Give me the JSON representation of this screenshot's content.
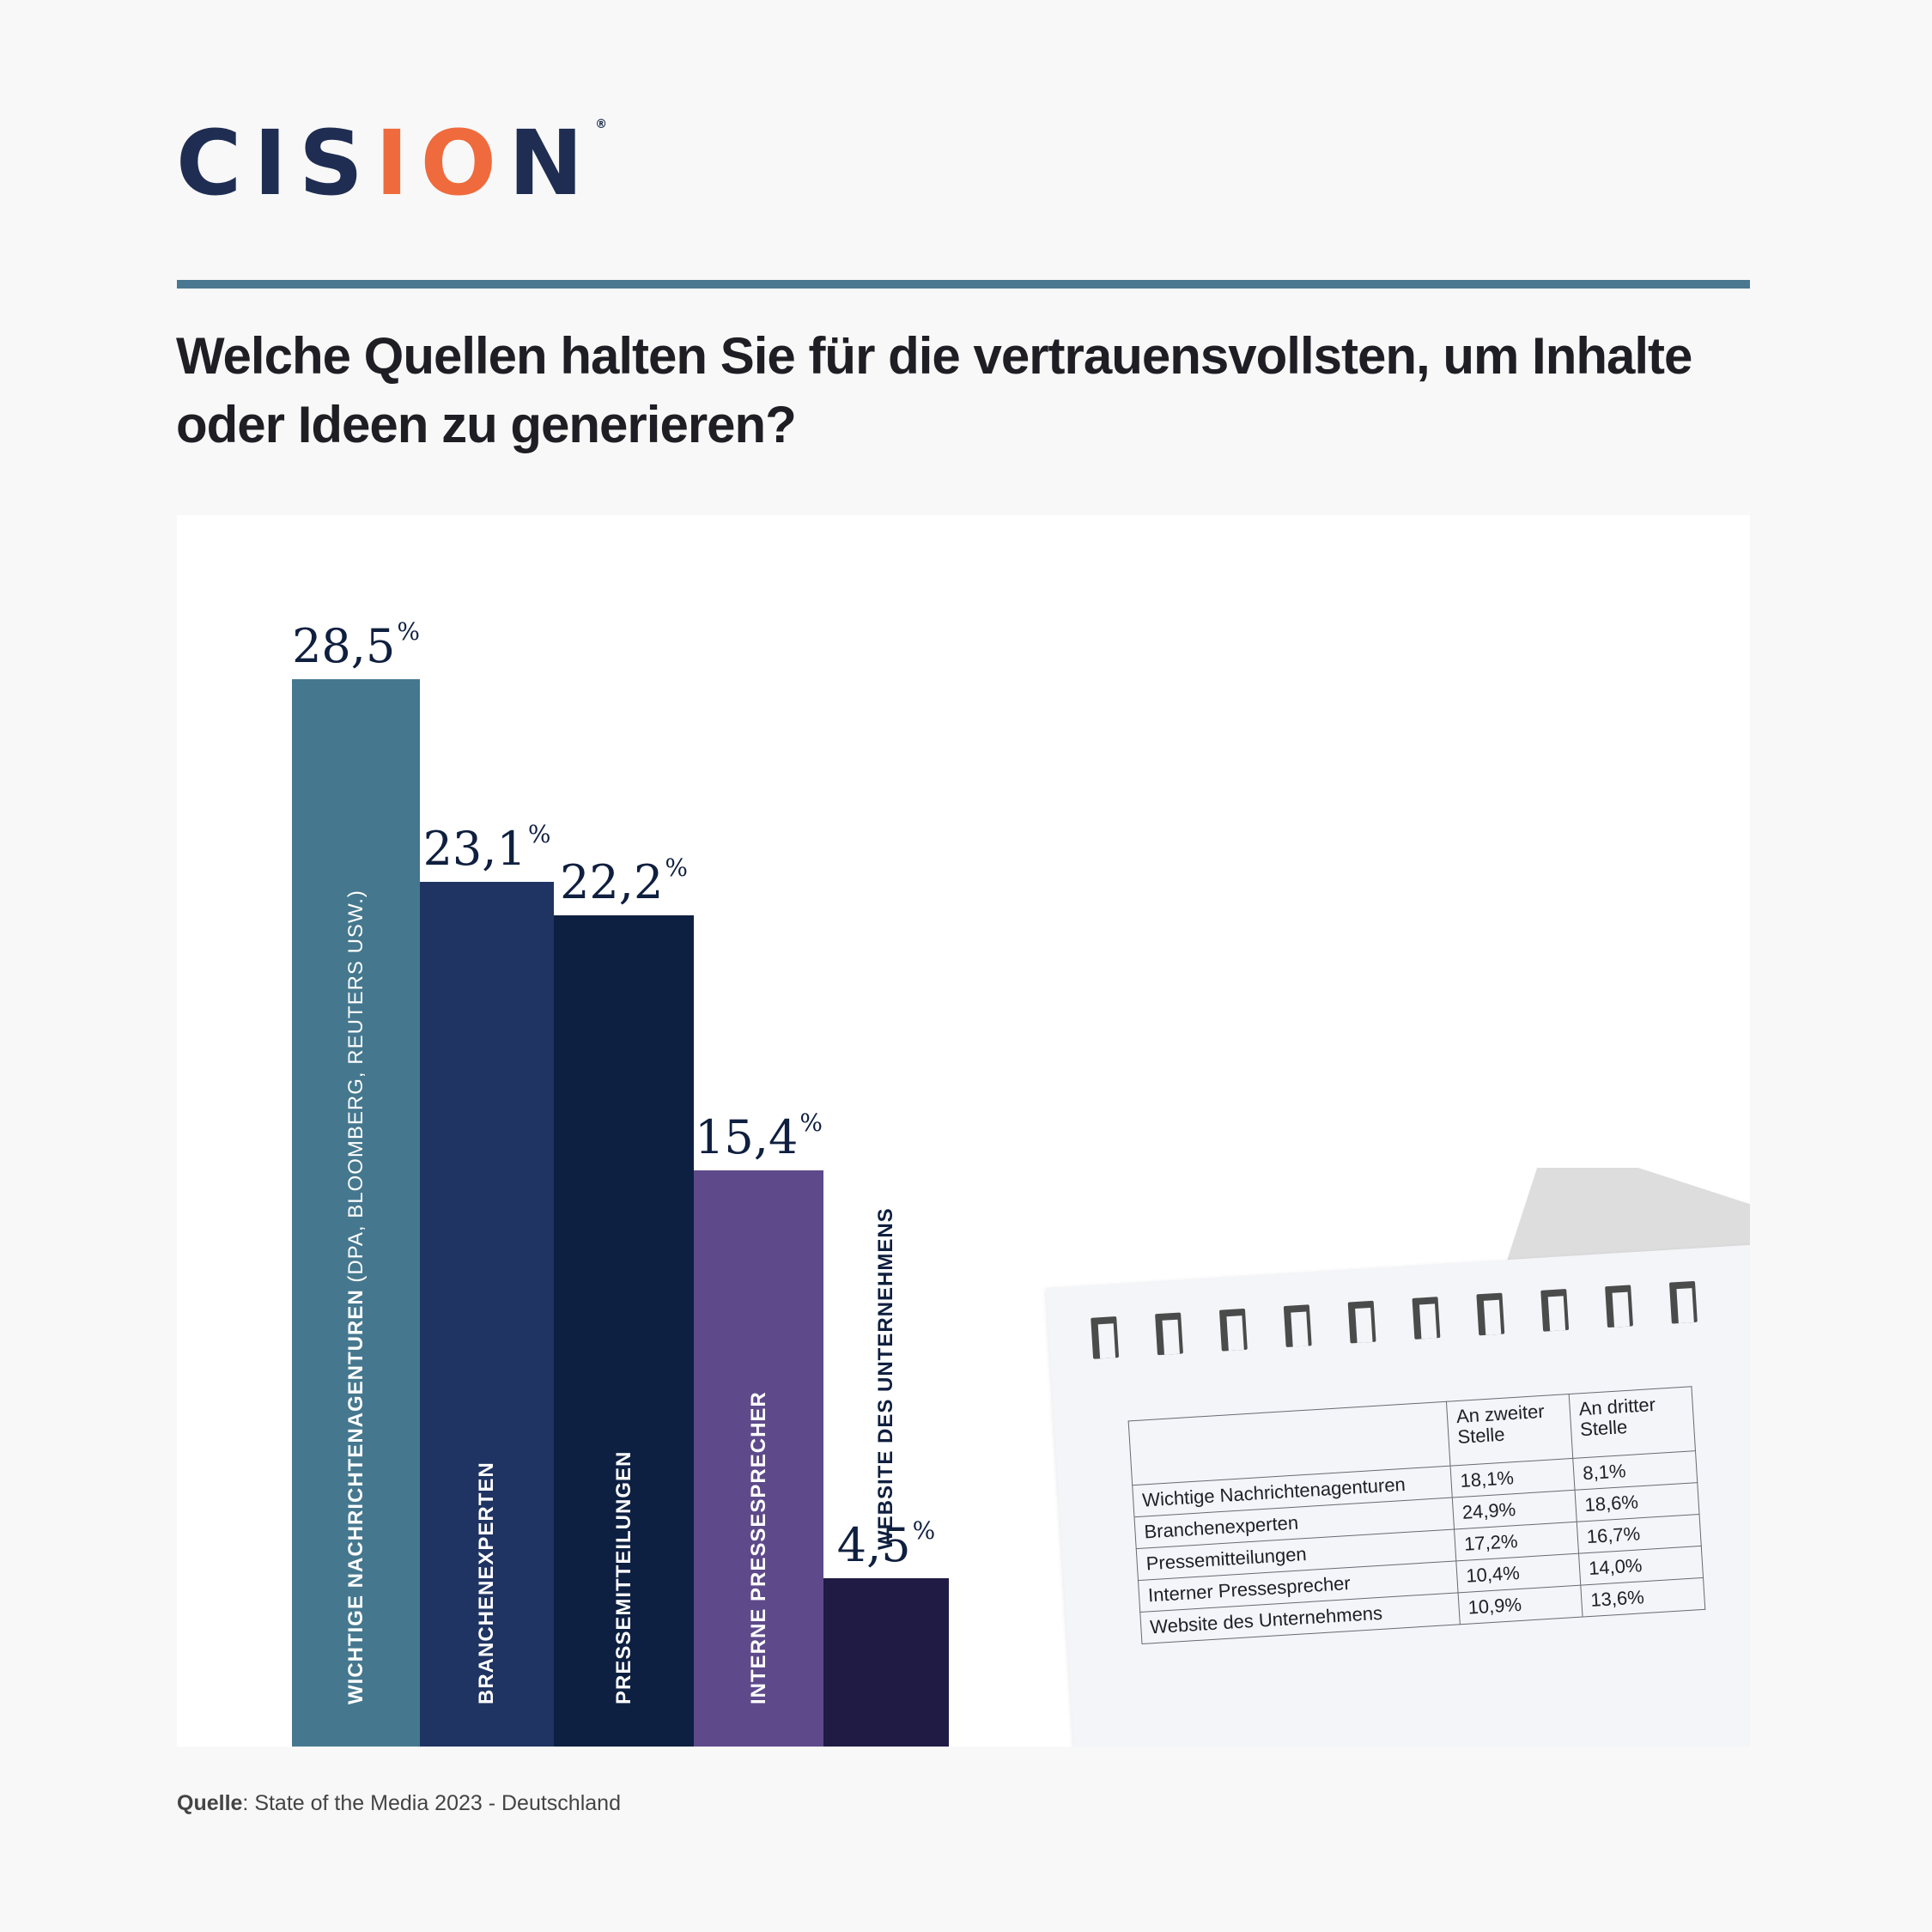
{
  "brand": {
    "logo_a": "C",
    "logo_b": "I",
    "logo_c": "S",
    "logo_d": "I",
    "logo_e": "O",
    "logo_f": "N",
    "registered": "®"
  },
  "title": "Welche Quellen halten Sie für die vertrauensvollsten, um Inhalte oder Ideen zu generieren?",
  "chart_data": {
    "type": "bar",
    "title": "Welche Quellen halten Sie für die vertrauensvollsten, um Inhalte oder Ideen zu generieren?",
    "categories": [
      "WICHTIGE NACHRICHTENAGENTUREN (DPA, BLOOMBERG, REUTERS USW.)",
      "BRANCHENEXPERTEN",
      "PRESSEMITTEILUNGEN",
      "INTERNE PRESSESPRECHER",
      "WEBSITE DES UNTERNEHMENS"
    ],
    "values": [
      28.5,
      23.1,
      22.2,
      15.4,
      4.5
    ],
    "value_labels": [
      "28,5",
      "23,1",
      "22,2",
      "15,4",
      "4,5"
    ],
    "unit": "%",
    "colors": [
      "#45788f",
      "#1f3462",
      "#0e2042",
      "#5e4a8a",
      "#1f1b44"
    ],
    "label_colors": [
      "#ffffff",
      "#ffffff",
      "#ffffff",
      "#ffffff",
      "#0f1f3f"
    ],
    "grid": false
  },
  "bar_labels": [
    {
      "main": "WICHTIGE NACHRICHTENAGENTUREN",
      "sub": " (DPA, BLOOMBERG, REUTERS USW.)"
    },
    {
      "main": "BRANCHENEXPERTEN",
      "sub": ""
    },
    {
      "main": "PRESSEMITTEILUNGEN",
      "sub": ""
    },
    {
      "main": "INTERNE PRESSESPRECHER",
      "sub": ""
    },
    {
      "main": "WEBSITE DES UNTERNEHMENS",
      "sub": ""
    }
  ],
  "percent_sign": "%",
  "rank_table": {
    "headers": [
      "",
      "An zweiter Stelle",
      "An dritter Stelle"
    ],
    "rows": [
      [
        "Wichtige Nachrichtenagenturen",
        "18,1%",
        "8,1%"
      ],
      [
        "Branchenexperten",
        "24,9%",
        "18,6%"
      ],
      [
        "Pressemitteilungen",
        "17,2%",
        "16,7%"
      ],
      [
        "Interner Pressesprecher",
        "10,4%",
        "14,0%"
      ],
      [
        "Website des Unternehmens",
        "10,9%",
        "13,6%"
      ]
    ]
  },
  "source": {
    "label": "Quelle",
    "text": ": State of the Media 2023 - Deutschland"
  }
}
